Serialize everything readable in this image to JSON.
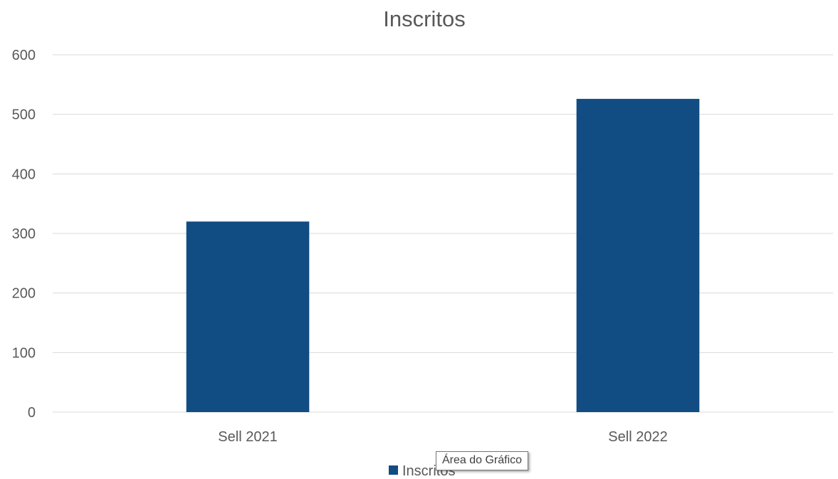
{
  "chart_data": {
    "type": "bar",
    "title": "Inscritos",
    "categories": [
      "Sell 2021",
      "Sell 2022"
    ],
    "series": [
      {
        "name": "Inscritos",
        "values": [
          320,
          526
        ],
        "color": "#114c82"
      }
    ],
    "ylim": [
      0,
      600
    ],
    "yticks": [
      0,
      100,
      200,
      300,
      400,
      500,
      600
    ],
    "grid": true,
    "legend_position": "bottom"
  },
  "tooltip": {
    "text": "Área do Gráfico"
  }
}
